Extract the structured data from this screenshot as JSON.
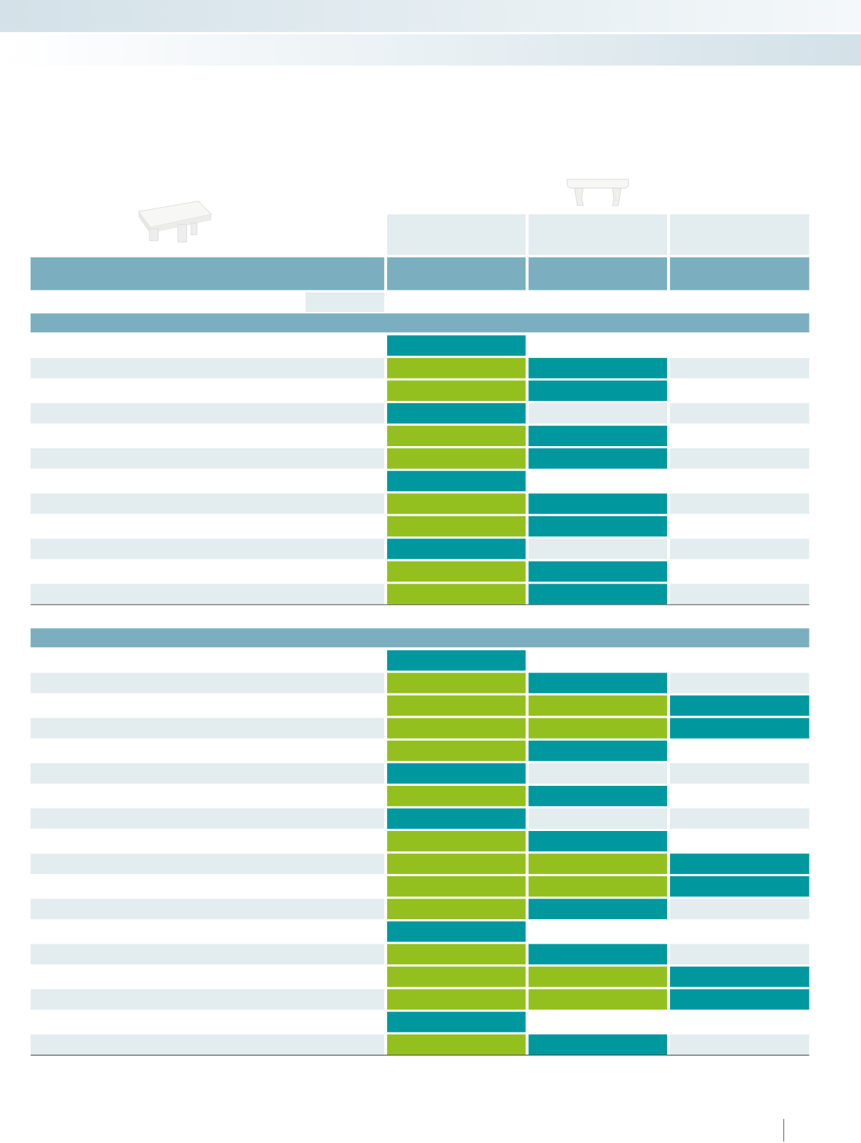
{
  "table": {
    "sections": [
      {
        "rows": [
          [
            "#00989f",
            "#ffffff",
            "#ffffff"
          ],
          [
            "#93c01f",
            "#00989f",
            "#e3ecef"
          ],
          [
            "#93c01f",
            "#00989f",
            "#ffffff"
          ],
          [
            "#00989f",
            "#e3ecef",
            "#e3ecef"
          ],
          [
            "#93c01f",
            "#00989f",
            "#ffffff"
          ],
          [
            "#93c01f",
            "#00989f",
            "#e3ecef"
          ],
          [
            "#00989f",
            "#ffffff",
            "#ffffff"
          ],
          [
            "#93c01f",
            "#00989f",
            "#e3ecef"
          ],
          [
            "#93c01f",
            "#00989f",
            "#ffffff"
          ],
          [
            "#00989f",
            "#e3ecef",
            "#e3ecef"
          ],
          [
            "#93c01f",
            "#00989f",
            "#ffffff"
          ],
          [
            "#93c01f",
            "#00989f",
            "#e3ecef"
          ]
        ]
      },
      {
        "rows": [
          [
            "#00989f",
            "#ffffff",
            "#ffffff"
          ],
          [
            "#93c01f",
            "#00989f",
            "#e3ecef"
          ],
          [
            "#93c01f",
            "#93c01f",
            "#00989f"
          ],
          [
            "#93c01f",
            "#93c01f",
            "#00989f"
          ],
          [
            "#93c01f",
            "#00989f",
            "#ffffff"
          ],
          [
            "#00989f",
            "#e3ecef",
            "#e3ecef"
          ],
          [
            "#93c01f",
            "#00989f",
            "#ffffff"
          ],
          [
            "#00989f",
            "#e3ecef",
            "#e3ecef"
          ],
          [
            "#93c01f",
            "#00989f",
            "#ffffff"
          ],
          [
            "#93c01f",
            "#93c01f",
            "#00989f"
          ],
          [
            "#93c01f",
            "#93c01f",
            "#00989f"
          ],
          [
            "#93c01f",
            "#00989f",
            "#e3ecef"
          ],
          [
            "#00989f",
            "#ffffff",
            "#ffffff"
          ],
          [
            "#93c01f",
            "#00989f",
            "#e3ecef"
          ],
          [
            "#93c01f",
            "#93c01f",
            "#00989f"
          ],
          [
            "#93c01f",
            "#93c01f",
            "#00989f"
          ],
          [
            "#00989f",
            "#ffffff",
            "#ffffff"
          ],
          [
            "#93c01f",
            "#00989f",
            "#e3ecef"
          ]
        ]
      }
    ]
  }
}
